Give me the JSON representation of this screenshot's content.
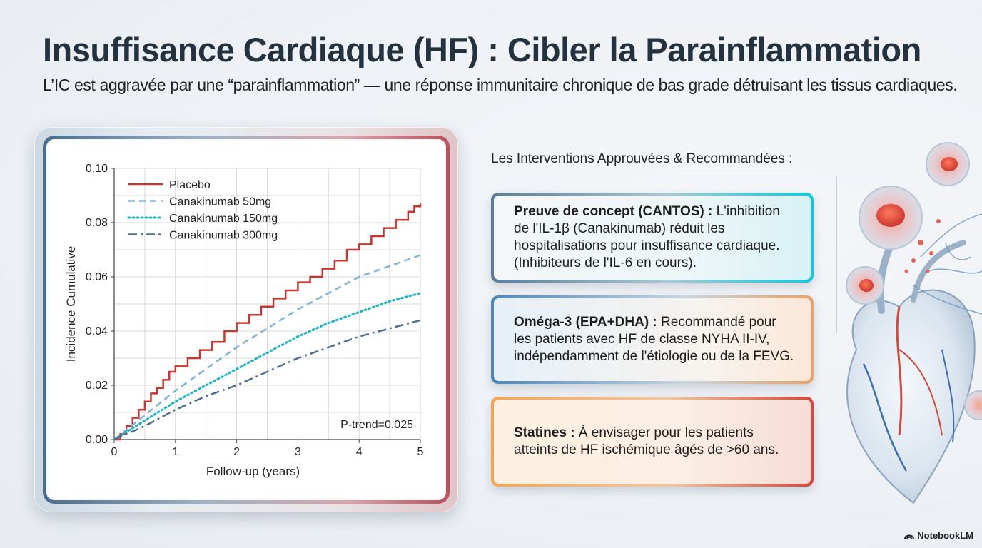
{
  "header": {
    "title": "Insuffisance Cardiaque (HF) : Cibler la Parainflammation",
    "subtitle": "L’IC est aggravée par une “parainflammation” — une réponse immunitaire chronique de bas grade détruisant les tissus cardiaques."
  },
  "chart_data": {
    "type": "line",
    "xlabel": "Follow-up (years)",
    "ylabel": "Incidence Cumulative",
    "xlim": [
      0,
      5
    ],
    "ylim": [
      0,
      0.1
    ],
    "x_ticks": [
      "0",
      "1",
      "2",
      "3",
      "4",
      "5"
    ],
    "y_ticks": [
      "0.00",
      "0.02",
      "0.04",
      "0.06",
      "0.08",
      "0.10"
    ],
    "grid": true,
    "legend_position": "top-left",
    "annotation": "P-trend=0.025",
    "series": [
      {
        "name": "Placebo",
        "color": "#c8362f",
        "style": "solid",
        "points": [
          [
            0,
            0
          ],
          [
            0.1,
            0.002
          ],
          [
            0.2,
            0.005
          ],
          [
            0.3,
            0.008
          ],
          [
            0.4,
            0.011
          ],
          [
            0.5,
            0.014
          ],
          [
            0.6,
            0.017
          ],
          [
            0.7,
            0.019
          ],
          [
            0.8,
            0.022
          ],
          [
            0.9,
            0.025
          ],
          [
            1.0,
            0.027
          ],
          [
            1.2,
            0.03
          ],
          [
            1.4,
            0.033
          ],
          [
            1.6,
            0.036
          ],
          [
            1.8,
            0.04
          ],
          [
            2.0,
            0.043
          ],
          [
            2.2,
            0.046
          ],
          [
            2.4,
            0.049
          ],
          [
            2.6,
            0.052
          ],
          [
            2.8,
            0.055
          ],
          [
            3.0,
            0.058
          ],
          [
            3.2,
            0.06
          ],
          [
            3.4,
            0.063
          ],
          [
            3.6,
            0.066
          ],
          [
            3.8,
            0.07
          ],
          [
            4.0,
            0.072
          ],
          [
            4.2,
            0.075
          ],
          [
            4.4,
            0.078
          ],
          [
            4.6,
            0.081
          ],
          [
            4.8,
            0.084
          ],
          [
            4.9,
            0.086
          ],
          [
            5.0,
            0.087
          ]
        ]
      },
      {
        "name": "Canakinumab 50mg",
        "color": "#7fb3d6",
        "style": "dashed",
        "points": [
          [
            0,
            0
          ],
          [
            0.5,
            0.009
          ],
          [
            1.0,
            0.018
          ],
          [
            1.5,
            0.026
          ],
          [
            2.0,
            0.034
          ],
          [
            2.5,
            0.041
          ],
          [
            3.0,
            0.048
          ],
          [
            3.5,
            0.054
          ],
          [
            4.0,
            0.06
          ],
          [
            4.5,
            0.064
          ],
          [
            5.0,
            0.068
          ]
        ]
      },
      {
        "name": "Canakinumab 150mg",
        "color": "#1eb2c2",
        "style": "dotted",
        "points": [
          [
            0,
            0
          ],
          [
            0.5,
            0.007
          ],
          [
            1.0,
            0.014
          ],
          [
            1.5,
            0.02
          ],
          [
            2.0,
            0.026
          ],
          [
            2.5,
            0.032
          ],
          [
            3.0,
            0.038
          ],
          [
            3.5,
            0.043
          ],
          [
            4.0,
            0.047
          ],
          [
            4.5,
            0.051
          ],
          [
            5.0,
            0.054
          ]
        ]
      },
      {
        "name": "Canakinumab 300mg",
        "color": "#4f6d8c",
        "style": "dashdot",
        "points": [
          [
            0,
            0
          ],
          [
            0.5,
            0.005
          ],
          [
            1.0,
            0.011
          ],
          [
            1.5,
            0.016
          ],
          [
            2.0,
            0.02
          ],
          [
            2.5,
            0.025
          ],
          [
            3.0,
            0.03
          ],
          [
            3.5,
            0.034
          ],
          [
            4.0,
            0.038
          ],
          [
            4.5,
            0.041
          ],
          [
            5.0,
            0.044
          ]
        ]
      }
    ]
  },
  "interventions": {
    "heading": "Les Interventions Approuvées & Recommandées :",
    "cards": [
      {
        "title": "Preuve de concept (CANTOS) :",
        "text": " L'inhibition de l'IL-1β (Canakinumab) réduit les hospitalisations pour insuffisance cardiaque. (Inhibiteurs de l'IL-6 en cours).",
        "accent": "#17c5d8"
      },
      {
        "title": "Oméga-3 (EPA+DHA) :",
        "text": " Recommandé pour les patients avec HF de classe NYHA II-IV, indépendamment de l'étiologie ou de la FEVG.",
        "accent": "#e6a36a"
      },
      {
        "title": "Statines :",
        "text": " À envisager pour les patients atteints de HF ischémique âgés de >60 ans.",
        "accent": "#d24a3e"
      }
    ]
  },
  "branding": {
    "name": "NotebookLM"
  },
  "illustration": {
    "icon": "heart-with-inflammatory-cells"
  }
}
